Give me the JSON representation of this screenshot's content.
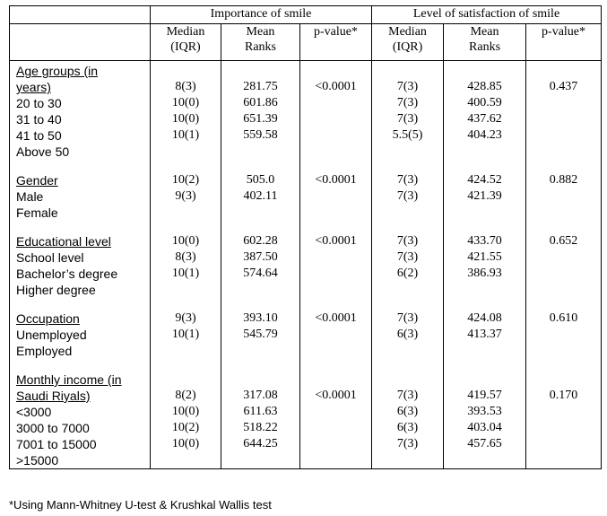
{
  "header": {
    "group_importance": "Importance of smile",
    "group_satisfaction": "Level of satisfaction of smile",
    "median_line1": "Median",
    "median_line2": "(IQR)",
    "mean_line1": "Mean",
    "mean_line2": "Ranks",
    "pvalue": "p-value*"
  },
  "sections": [
    {
      "title_lines": [
        "Age groups (in",
        "years)"
      ],
      "rows": [
        {
          "label": "20 to 30",
          "imp_median": "8(3)",
          "imp_mean": "281.75",
          "sat_median": "7(3)",
          "sat_mean": "428.85"
        },
        {
          "label": "31 to 40",
          "imp_median": "10(0)",
          "imp_mean": "601.86",
          "sat_median": "7(3)",
          "sat_mean": "400.59"
        },
        {
          "label": "41 to 50",
          "imp_median": "10(0)",
          "imp_mean": "651.39",
          "sat_median": "7(3)",
          "sat_mean": "437.62"
        },
        {
          "label": "Above 50",
          "imp_median": "10(1)",
          "imp_mean": "559.58",
          "sat_median": "5.5(5)",
          "sat_mean": "404.23"
        }
      ],
      "imp_p": "<0.0001",
      "sat_p": "0.437"
    },
    {
      "title_lines": [
        "Gender"
      ],
      "rows": [
        {
          "label": "Male",
          "imp_median": "10(2)",
          "imp_mean": "505.0",
          "sat_median": "7(3)",
          "sat_mean": "424.52"
        },
        {
          "label": "Female",
          "imp_median": "9(3)",
          "imp_mean": "402.11",
          "sat_median": "7(3)",
          "sat_mean": "421.39"
        }
      ],
      "imp_p": "<0.0001",
      "sat_p": "0.882"
    },
    {
      "title_lines": [
        "Educational level"
      ],
      "rows": [
        {
          "label": "School level",
          "imp_median": "10(0)",
          "imp_mean": "602.28",
          "sat_median": "7(3)",
          "sat_mean": "433.70"
        },
        {
          "label": "Bachelor’s degree",
          "imp_median": "8(3)",
          "imp_mean": "387.50",
          "sat_median": "7(3)",
          "sat_mean": "421.55"
        },
        {
          "label": "Higher degree",
          "imp_median": "10(1)",
          "imp_mean": "574.64",
          "sat_median": "6(2)",
          "sat_mean": "386.93"
        }
      ],
      "imp_p": "<0.0001",
      "sat_p": "0.652"
    },
    {
      "title_lines": [
        "Occupation"
      ],
      "rows": [
        {
          "label": "Unemployed",
          "imp_median": "9(3)",
          "imp_mean": "393.10",
          "sat_median": "7(3)",
          "sat_mean": "424.08"
        },
        {
          "label": "Employed",
          "imp_median": "10(1)",
          "imp_mean": "545.79",
          "sat_median": "6(3)",
          "sat_mean": "413.37"
        }
      ],
      "imp_p": "<0.0001",
      "sat_p": "0.610"
    },
    {
      "title_lines": [
        "Monthly income (in",
        "Saudi Riyals)"
      ],
      "rows": [
        {
          "label": "<3000",
          "imp_median": "8(2)",
          "imp_mean": "317.08",
          "sat_median": "7(3)",
          "sat_mean": "419.57"
        },
        {
          "label": "3000 to 7000",
          "imp_median": "10(0)",
          "imp_mean": "611.63",
          "sat_median": "6(3)",
          "sat_mean": "393.53"
        },
        {
          "label": "7001 to 15000",
          "imp_median": "10(2)",
          "imp_mean": "518.22",
          "sat_median": "6(3)",
          "sat_mean": "403.04"
        },
        {
          "label": ">15000",
          "imp_median": "10(0)",
          "imp_mean": "644.25",
          "sat_median": "7(3)",
          "sat_mean": "457.65"
        }
      ],
      "imp_p": "<0.0001",
      "sat_p": "0.170"
    }
  ],
  "footnote": "*Using Mann-Whitney U-test & Krushkal Wallis test"
}
